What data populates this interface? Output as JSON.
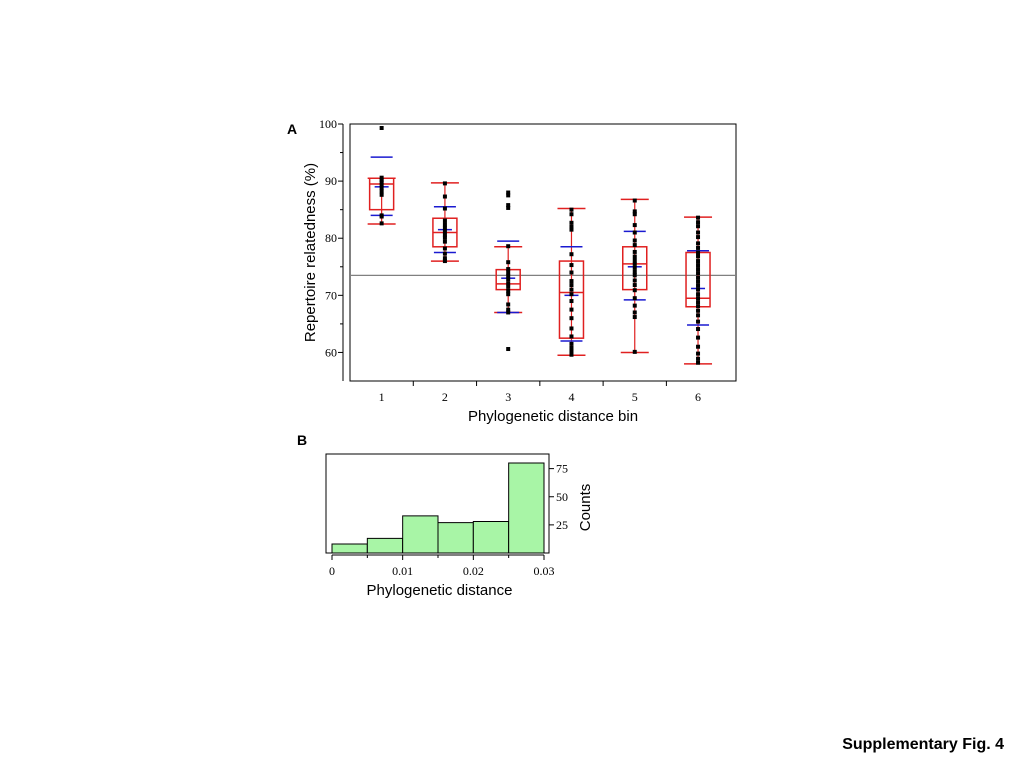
{
  "caption": "Supplementary Fig. 4",
  "chart_data": [
    {
      "panel": "A",
      "type": "box",
      "xlabel": "Phylogenetic distance bin",
      "ylabel": "Repertoire relatedness (%)",
      "categories": [
        "1",
        "2",
        "3",
        "4",
        "5",
        "6"
      ],
      "xlim": [
        0.5,
        6.6
      ],
      "ylim": [
        55,
        100
      ],
      "yticks": [
        60,
        70,
        80,
        90,
        100
      ],
      "reference_line": 73.5,
      "colors": {
        "box": "#e02020",
        "mean_sd": "#1a1ad0",
        "points": "#000000",
        "reference": "#808080"
      },
      "boxes": [
        {
          "bin": "1",
          "min": 82.5,
          "q1": 85.0,
          "median": 89.5,
          "q3": 90.5,
          "max": 90.5,
          "mean": 89.0,
          "sd_low": 84.0,
          "sd_high": 94.2,
          "points": [
            99.3,
            90.6,
            90.2,
            89.8,
            89.3,
            88.8,
            88.2,
            87.6,
            84.0,
            83.8,
            82.6
          ]
        },
        {
          "bin": "2",
          "min": 76.0,
          "q1": 78.5,
          "median": 81.0,
          "q3": 83.5,
          "max": 89.7,
          "mean": 81.5,
          "sd_low": 77.5,
          "sd_high": 85.5,
          "points": [
            89.6,
            87.3,
            85.2,
            83.1,
            82.4,
            81.8,
            81.2,
            80.6,
            80.1,
            79.4,
            78.2,
            77.3,
            76.5,
            76.0
          ]
        },
        {
          "bin": "3",
          "min": 67.0,
          "q1": 71.0,
          "median": 72.0,
          "q3": 74.5,
          "max": 78.5,
          "mean": 73.0,
          "sd_low": 67.0,
          "sd_high": 79.5,
          "points": [
            88.0,
            87.5,
            85.8,
            85.3,
            78.6,
            75.8,
            74.6,
            74.0,
            73.4,
            72.8,
            72.1,
            71.5,
            70.8,
            70.2,
            68.4,
            67.5,
            67.0,
            60.6
          ]
        },
        {
          "bin": "4",
          "min": 59.5,
          "q1": 62.5,
          "median": 70.5,
          "q3": 76.0,
          "max": 85.2,
          "mean": 70.0,
          "sd_low": 62.0,
          "sd_high": 78.5,
          "points": [
            85.0,
            84.2,
            82.7,
            82.0,
            81.5,
            77.2,
            75.3,
            74.0,
            72.5,
            71.8,
            71.0,
            70.2,
            69.0,
            67.5,
            66.0,
            64.2,
            62.8,
            61.5,
            60.8,
            60.2,
            59.6
          ]
        },
        {
          "bin": "5",
          "min": 60.0,
          "q1": 71.0,
          "median": 75.5,
          "q3": 78.5,
          "max": 86.8,
          "mean": 75.0,
          "sd_low": 69.2,
          "sd_high": 81.2,
          "points": [
            86.6,
            84.7,
            84.2,
            82.3,
            81.0,
            79.6,
            78.8,
            77.6,
            76.8,
            76.1,
            75.5,
            74.8,
            74.1,
            73.5,
            72.6,
            71.8,
            70.9,
            69.5,
            68.2,
            67.0,
            66.2,
            60.1
          ]
        },
        {
          "bin": "6",
          "min": 58.0,
          "q1": 68.0,
          "median": 69.5,
          "q3": 77.5,
          "max": 83.7,
          "mean": 71.2,
          "sd_low": 64.8,
          "sd_high": 77.8,
          "points": [
            83.6,
            82.8,
            82.1,
            81.0,
            80.2,
            79.1,
            78.3,
            77.5,
            76.8,
            76.0,
            75.3,
            74.6,
            73.9,
            73.1,
            72.4,
            71.7,
            71.0,
            70.2,
            69.5,
            68.8,
            68.1,
            67.3,
            66.5,
            65.4,
            64.1,
            62.6,
            61.0,
            59.8,
            58.9,
            58.2
          ]
        }
      ]
    },
    {
      "panel": "B",
      "type": "histogram",
      "xlabel": "Phylogenetic distance",
      "ylabel": "Counts",
      "xlim": [
        0,
        0.03
      ],
      "ylim": [
        0,
        88
      ],
      "xticks": [
        {
          "value": 0,
          "label": "0"
        },
        {
          "value": 0.01,
          "label": "0.01"
        },
        {
          "value": 0.02,
          "label": "0.02"
        },
        {
          "value": 0.03,
          "label": "0.03"
        }
      ],
      "yticks": [
        25,
        50,
        75
      ],
      "colors": {
        "bar_fill": "#a8f5a6",
        "bar_stroke": "#000000"
      },
      "bins": [
        {
          "start": 0.0,
          "end": 0.005,
          "count": 8
        },
        {
          "start": 0.005,
          "end": 0.01,
          "count": 13
        },
        {
          "start": 0.01,
          "end": 0.015,
          "count": 33
        },
        {
          "start": 0.015,
          "end": 0.02,
          "count": 27
        },
        {
          "start": 0.02,
          "end": 0.025,
          "count": 28
        },
        {
          "start": 0.025,
          "end": 0.03,
          "count": 80
        }
      ]
    }
  ]
}
